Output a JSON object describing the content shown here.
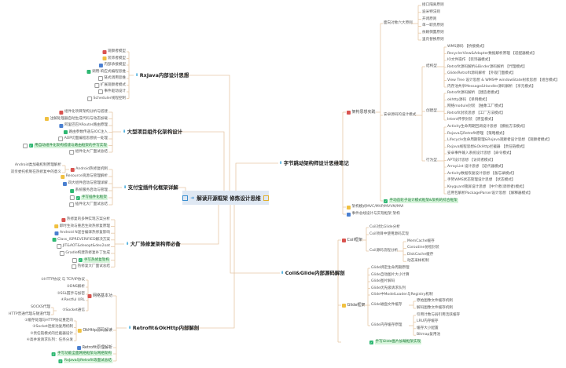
{
  "center": {
    "title": "解读开源框架 修炼设计思维"
  },
  "rxjava": {
    "title": "RxJava内部设计思想",
    "items": [
      "观察者模型",
      "装饰者模型",
      "内部承接模型",
      "调用-响应式编程思维",
      "链式调用思维",
      "扩展观察者模式",
      "事件驱动设计",
      "Scheduler线程控制"
    ]
  },
  "componentization": {
    "title": "大型项目组件化架构设计",
    "items": [
      "组件化项目架构分析与搭建",
      "注解处理器自动生成代码与动态加载",
      "阿里巴巴ARouter路由原理",
      "路由参数传递与IOC注入",
      "AOP切面编程思想统一处理",
      "用自动组件化架构搭建与路由框架的手写实现",
      "组件化大厂面试总结"
    ]
  },
  "alipay": {
    "title": "支付宝插件化框架详解",
    "items": [
      "Android热修复机制",
      "Resource资源与管理解析",
      "四大组件启动与管理详解",
      "系统服务启动与管理",
      "手写插件化框架",
      "插件化大厂面试总结"
    ],
    "hotfix_sub": [
      "Android类加载机制原理解析",
      "双亲委托机制在热修复中的意义"
    ]
  },
  "hotfix": {
    "title": "大厂热修复架构师必备",
    "items": [
      "热修复的多种实现方案分析",
      "即时生效与重启生效热修复原理",
      "Android N混合编译热修复影响",
      "Class_ISPREVERIFIED解决方案",
      "JIT&AOT&dexopt&dex2oat",
      "Gradle构建热修复补丁生成",
      "手写热修复架构",
      "热修复大厂面试总结"
    ]
  },
  "retrofit": {
    "title": "Retrofit&OkHttp内部解剖",
    "network": {
      "label": "网络基本功",
      "items": [
        "①HTTP协议 与 TCP/IP协议",
        "②DNS解析",
        "③SSL握手与加密",
        "④Restful URL",
        "⑤Socket通信"
      ],
      "socket_sub": [
        "SOCKS代理",
        "HTTP普通代理与隧道代理"
      ]
    },
    "okhttp": {
      "label": "OkHttp源码解读",
      "items": [
        "①缓存处理与HTTP协议重定向",
        "②Socket连接池复用机制",
        "③责任链模式的拦截器设计",
        "④高并发请求队列：任务分发"
      ]
    },
    "retrofit_label": "Retrofit原理解析",
    "handwrite": "手写功能全面网络框架与网络架构",
    "interview": "RxJava与Retrofit等面试总结"
  },
  "bytedance": {
    "title": "字节跳动架构师设计思维笔记",
    "practice": {
      "label": "架构思想实践",
      "principles": {
        "label": "面向对象六大原则",
        "items": [
          "接口隔离原则",
          "迪米特法则",
          "开闭原则",
          "单一职责原则",
          "依赖倒置原则",
          "里氏替换原则"
        ]
      },
      "patterns": {
        "label": "安卓源码的设计模式",
        "structural": {
          "label": "结构型",
          "items": [
            "WMS源码 【桥接模式】",
            "RecyclerView&Adapter数据解析原理 【适配器模式】",
            "IO文件操作 【装饰器模式】",
            "Retrofit源码解析&Binder源码解析 【代理模式】",
            "Glide/Retrofit源码解析 【外观门面模式】",
            "View Tree 设计思想 & WMS中 windowState树状思想 【组合模式】",
            "内存池共享Message&Handler源码解析 【享元模式】"
          ]
        },
        "creational": {
          "label": "创建型",
          "items": [
            "Retrofit源码解析 【建造者模式】",
            "okhttp源码 【单例模式】",
            "网络module封装 【抽象工厂模式】",
            "Retrofit封装思想 【工厂方法模式】",
            "Intent传参封装 【原型模式】"
          ]
        },
        "behavioral": {
          "label": "行为型",
          "items": [
            "Activity生命周期回调设计思想 【模板方法模式】",
            "Rxjava与Retrofit原理 【策略模式】",
            "Lifecycle生命周期管理&Rxjava观察者设计思想 【观察者模式】",
            "Rxjava线程思想&OkHttp拦截器 【责任链模式】",
            "安卓事件输入系统设计思想 【命令模式】",
            "APT设计思想 【访问者模式】",
            "ArrayList 设计思想 【迭代器模式】",
            "Activity数据恢复设计思想 【备忘录模式】",
            "手势WMS状态管理设计思想 【状态模式】",
            "Keyguard锁屏设计思想 【中介者(调停者)模式】",
            "应用包解析PackageParser设计思想 【解释器模式】"
          ]
        }
      },
      "handwrite": "手动造轮子设计模式框架&架构的综合框架"
    },
    "architecture": "架构模式MVC/MVP/MVVM/MVI",
    "eventbus": "事件总线设计与实现框架 架构"
  },
  "coil_glide": {
    "title": "Coil&Glide内部源码解剖",
    "coil": {
      "label": "Coil框架",
      "items": [
        "Coil对比Glide分析",
        "Coil项目中使用源码实现"
      ],
      "flow": {
        "label": "Coil源码流程分析",
        "items": [
          "MemCache缓存",
          "Coroutine协程封装",
          "DiskCache缓存",
          "动态采样机制"
        ]
      }
    },
    "glide": {
      "label": "Glide框架",
      "items": [
        "Glide绑定生命周期原理",
        "Glide自动图片大小计算",
        "Glide图片解码",
        "Glide优先级请求队列",
        "Glide中ModelLoader与Registry机制"
      ],
      "disk": {
        "label": "Glide磁盘文件缓存",
        "items": [
          "原始图像文件缓存机制",
          "解码图像文件缓存机制"
        ]
      },
      "memory": {
        "label": "Glide内存缓存原理",
        "items": [
          "引用计数与弱引用活跃缓存",
          "LRU内存缓存",
          "缓存大小配置",
          "Bitmap复用池"
        ]
      }
    },
    "handwrite": "手写Glide图片加载框架实现"
  },
  "colors": {
    "line": "#e6c8a6",
    "center_bg": "#dfe8f3",
    "highlight": "#d8f5dc",
    "red": "#d9534f",
    "yellow": "#f0c040",
    "blue": "#4a7fd0",
    "green": "#2eb872"
  }
}
